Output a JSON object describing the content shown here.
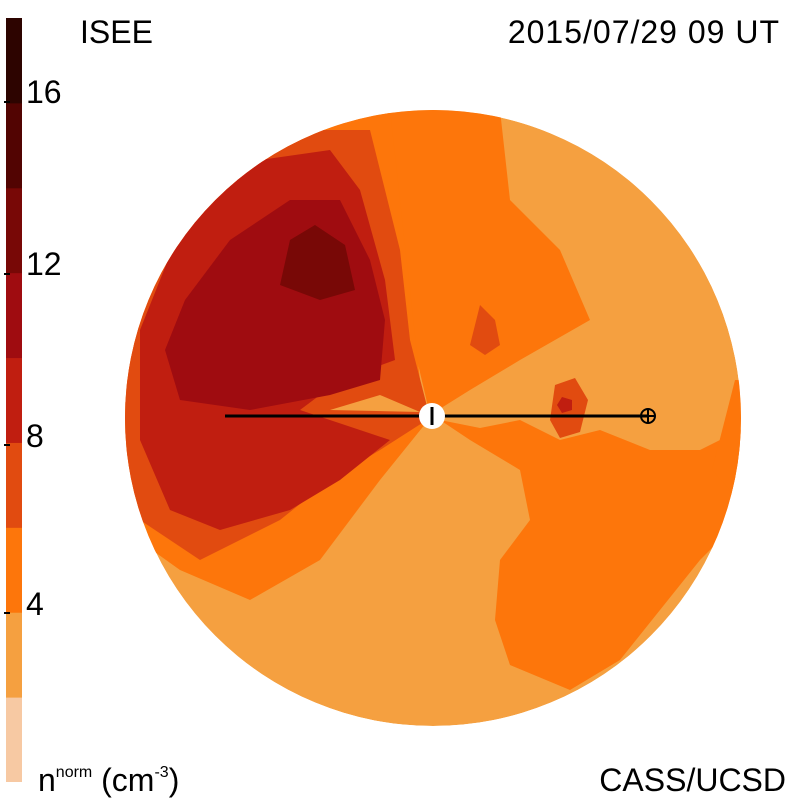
{
  "header": {
    "source": "ISEE",
    "timestamp": "2015/07/29 09 UT"
  },
  "footer": {
    "credit": "CASS/UCSD",
    "unit_base": "n",
    "unit_super": "norm",
    "unit_paren": "(cm",
    "unit_exp": "-3",
    "unit_close": ")"
  },
  "colorbar": {
    "ticks": [
      "16",
      "12",
      "8",
      "4"
    ],
    "colors": [
      "#f7c9a3",
      "#f5a040",
      "#fd760b",
      "#e14b10",
      "#c01e10",
      "#9f0c10",
      "#780806",
      "#520402",
      "#2d0400"
    ]
  },
  "map": {
    "background": "#f5a040",
    "levels": {
      "level1": "#f5a040",
      "level2": "#fd760b",
      "level3": "#e14b10",
      "level4": "#c01e10",
      "level5": "#9f0c10",
      "level6": "#780806"
    }
  }
}
